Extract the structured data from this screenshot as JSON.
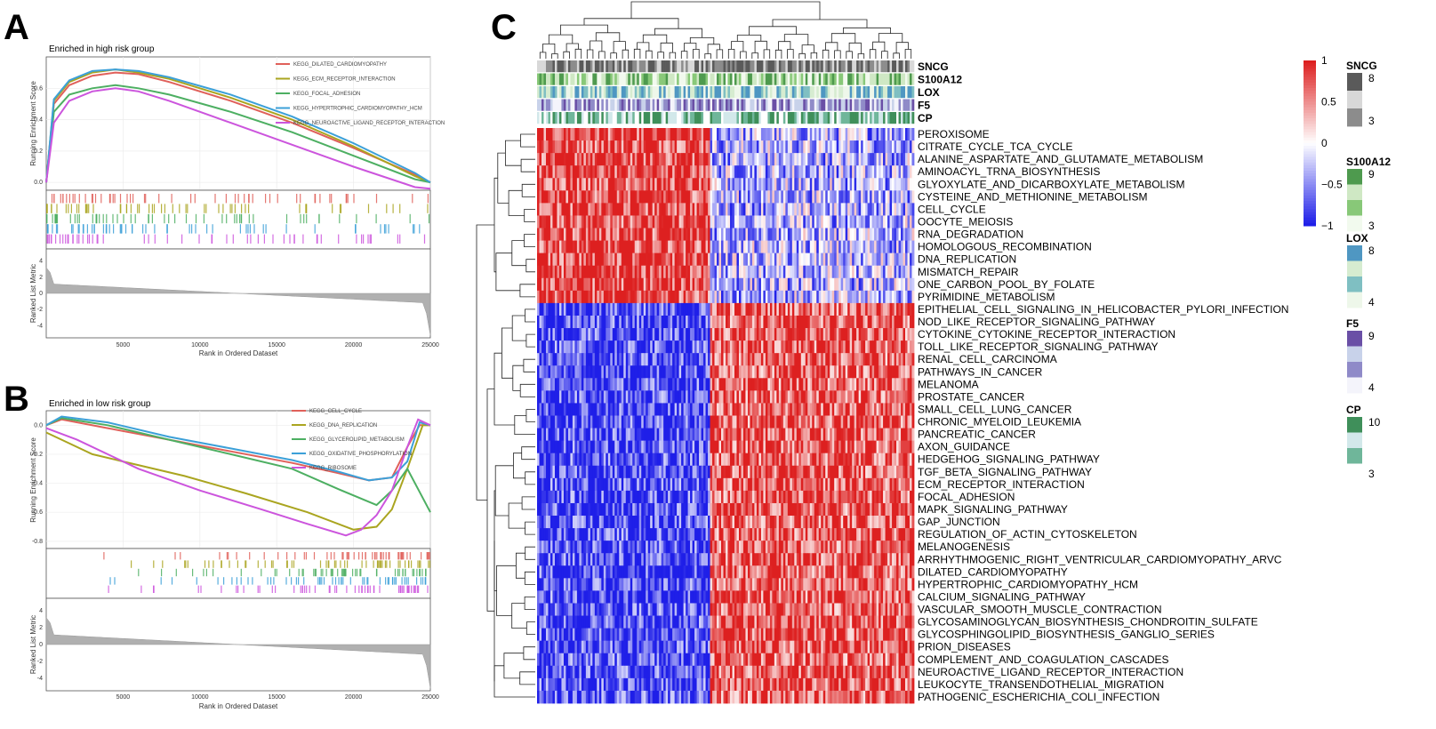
{
  "panels": {
    "a": "A",
    "b": "B",
    "c": "C"
  },
  "chart_data": [
    {
      "type": "line",
      "panel": "A",
      "title": "Enriched in high risk group",
      "xlabel": "Rank in Ordered Dataset",
      "ylabel": "Running Enrichment Score",
      "metric_label": "Ranked List Metric",
      "xlim": [
        0,
        25000
      ],
      "ylim": [
        -0.05,
        0.8
      ],
      "x_ticks": [
        "5000",
        "10000",
        "15000",
        "20000",
        "25000"
      ],
      "y_ticks": [
        "0.0",
        "0.2",
        "0.4",
        "0.6"
      ],
      "metric_ticks": [
        "4",
        "2",
        "0",
        "-2",
        "-4"
      ],
      "series": [
        {
          "name": "KEGG_DILATED_CARDIOMYOPATHY",
          "color": "#e0605a",
          "x": [
            0,
            500,
            1500,
            3000,
            4500,
            6000,
            8000,
            12000,
            16000,
            20000,
            24000,
            25000
          ],
          "y": [
            0.0,
            0.5,
            0.62,
            0.68,
            0.7,
            0.69,
            0.64,
            0.52,
            0.38,
            0.22,
            0.05,
            0.0
          ]
        },
        {
          "name": "KEGG_ECM_RECEPTOR_INTERACTION",
          "color": "#aaa520",
          "x": [
            0,
            500,
            1500,
            3000,
            4500,
            6000,
            8000,
            12000,
            16000,
            20000,
            24000,
            25000
          ],
          "y": [
            0.0,
            0.52,
            0.64,
            0.7,
            0.72,
            0.7,
            0.66,
            0.54,
            0.4,
            0.23,
            0.04,
            0.0
          ]
        },
        {
          "name": "KEGG_FOCAL_ADHESION",
          "color": "#4daf62",
          "x": [
            0,
            500,
            1500,
            3000,
            4500,
            6000,
            8000,
            12000,
            16000,
            20000,
            24000,
            25000
          ],
          "y": [
            0.0,
            0.45,
            0.56,
            0.6,
            0.62,
            0.6,
            0.56,
            0.45,
            0.32,
            0.17,
            0.02,
            0.0
          ]
        },
        {
          "name": "KEGG_HYPERTROPHIC_CARDIOMYOPATHY_HCM",
          "color": "#3ca0d8",
          "x": [
            0,
            500,
            1500,
            3000,
            4500,
            6000,
            8000,
            12000,
            16000,
            20000,
            24000,
            25000
          ],
          "y": [
            0.0,
            0.53,
            0.65,
            0.71,
            0.72,
            0.71,
            0.67,
            0.56,
            0.42,
            0.25,
            0.06,
            0.0
          ]
        },
        {
          "name": "KEGG_NEUROACTIVE_LIGAND_RECEPTOR_INTERACTION",
          "color": "#cc55dd",
          "x": [
            0,
            500,
            1500,
            3000,
            4500,
            6000,
            8000,
            12000,
            16000,
            20000,
            24000,
            25000
          ],
          "y": [
            0.0,
            0.38,
            0.52,
            0.58,
            0.6,
            0.58,
            0.52,
            0.38,
            0.24,
            0.1,
            -0.03,
            -0.04
          ]
        }
      ]
    },
    {
      "type": "line",
      "panel": "B",
      "title": "Enriched in low risk group",
      "xlabel": "Rank in Ordered Dataset",
      "ylabel": "Running Enrichment Score",
      "metric_label": "Ranked List Metric",
      "xlim": [
        0,
        25000
      ],
      "ylim": [
        -0.85,
        0.1
      ],
      "x_ticks": [
        "5000",
        "10000",
        "15000",
        "20000",
        "25000"
      ],
      "y_ticks": [
        "0.0",
        "-0.2",
        "-0.4",
        "-0.6",
        "-0.8"
      ],
      "metric_ticks": [
        "4",
        "2",
        "0",
        "-2",
        "-4"
      ],
      "series": [
        {
          "name": "KEGG_CELL_CYCLE",
          "color": "#e0605a",
          "x": [
            0,
            1000,
            4000,
            8000,
            12000,
            16000,
            19000,
            21000,
            22500,
            23500,
            24300,
            25000
          ],
          "y": [
            0.0,
            0.04,
            -0.02,
            -0.1,
            -0.18,
            -0.26,
            -0.33,
            -0.38,
            -0.36,
            -0.15,
            0.0,
            0.0
          ]
        },
        {
          "name": "KEGG_DNA_REPLICATION",
          "color": "#aaa520",
          "x": [
            0,
            1000,
            3000,
            5000,
            9000,
            13000,
            17000,
            20000,
            21500,
            22500,
            23500,
            24500,
            25000
          ],
          "y": [
            -0.05,
            -0.1,
            -0.2,
            -0.25,
            -0.35,
            -0.47,
            -0.6,
            -0.72,
            -0.7,
            -0.58,
            -0.3,
            0.0,
            0.0
          ]
        },
        {
          "name": "KEGG_GLYCEROLIPID_METABOLISM",
          "color": "#4daf62",
          "x": [
            0,
            1000,
            4000,
            8000,
            12000,
            16000,
            19000,
            21500,
            22500,
            23500,
            25000
          ],
          "y": [
            0.0,
            0.05,
            0.0,
            -0.1,
            -0.2,
            -0.3,
            -0.44,
            -0.55,
            -0.45,
            -0.3,
            -0.6
          ]
        },
        {
          "name": "KEGG_OXIDATIVE_PHOSPHORYLATION",
          "color": "#3ca0d8",
          "x": [
            0,
            1000,
            4000,
            8000,
            12000,
            16000,
            19000,
            21000,
            22500,
            23500,
            24300,
            25000
          ],
          "y": [
            0.0,
            0.06,
            0.02,
            -0.08,
            -0.16,
            -0.24,
            -0.32,
            -0.38,
            -0.36,
            -0.25,
            0.02,
            0.0
          ]
        },
        {
          "name": "KEGG_RIBOSOME",
          "color": "#cc55dd",
          "x": [
            0,
            2000,
            6000,
            10000,
            14000,
            17000,
            19500,
            20500,
            21500,
            22500,
            23500,
            24200,
            25000
          ],
          "y": [
            -0.02,
            -0.1,
            -0.3,
            -0.45,
            -0.58,
            -0.68,
            -0.76,
            -0.72,
            -0.62,
            -0.45,
            -0.15,
            0.04,
            0.0
          ]
        }
      ]
    },
    {
      "type": "heatmap",
      "panel": "C",
      "colorscale": {
        "low": "#1f1fe8",
        "mid": "#ffffff",
        "high": "#dd2020",
        "ticks": [
          "1",
          "0.5",
          "0",
          "−0.5",
          "−1"
        ]
      },
      "annotation_tracks": [
        "SNCG",
        "S100A12",
        "LOX",
        "F5",
        "CP"
      ],
      "rows": [
        "PEROXISOME",
        "CITRATE_CYCLE_TCA_CYCLE",
        "ALANINE_ASPARTATE_AND_GLUTAMATE_METABOLISM",
        "AMINOACYL_TRNA_BIOSYNTHESIS",
        "GLYOXYLATE_AND_DICARBOXYLATE_METABOLISM",
        "CYSTEINE_AND_METHIONINE_METABOLISM",
        "CELL_CYCLE",
        "OOCYTE_MEIOSIS",
        "RNA_DEGRADATION",
        "HOMOLOGOUS_RECOMBINATION",
        "DNA_REPLICATION",
        "MISMATCH_REPAIR",
        "ONE_CARBON_POOL_BY_FOLATE",
        "PYRIMIDINE_METABOLISM",
        "EPITHELIAL_CELL_SIGNALING_IN_HELICOBACTER_PYLORI_INFECTION",
        "NOD_LIKE_RECEPTOR_SIGNALING_PATHWAY",
        "CYTOKINE_CYTOKINE_RECEPTOR_INTERACTION",
        "TOLL_LIKE_RECEPTOR_SIGNALING_PATHWAY",
        "RENAL_CELL_CARCINOMA",
        "PATHWAYS_IN_CANCER",
        "MELANOMA",
        "PROSTATE_CANCER",
        "SMALL_CELL_LUNG_CANCER",
        "CHRONIC_MYELOID_LEUKEMIA",
        "PANCREATIC_CANCER",
        "AXON_GUIDANCE",
        "HEDGEHOG_SIGNALING_PATHWAY",
        "TGF_BETA_SIGNALING_PATHWAY",
        "ECM_RECEPTOR_INTERACTION",
        "FOCAL_ADHESION",
        "MAPK_SIGNALING_PATHWAY",
        "GAP_JUNCTION",
        "REGULATION_OF_ACTIN_CYTOSKELETON",
        "MELANOGENESIS",
        "ARRHYTHMOGENIC_RIGHT_VENTRICULAR_CARDIOMYOPATHY_ARVC",
        "DILATED_CARDIOMYOPATHY",
        "HYPERTROPHIC_CARDIOMYOPATHY_HCM",
        "CALCIUM_SIGNALING_PATHWAY",
        "VASCULAR_SMOOTH_MUSCLE_CONTRACTION",
        "GLYCOSAMINOGLYCAN_BIOSYNTHESIS_CHONDROITIN_SULFATE",
        "GLYCOSPHINGOLIPID_BIOSYNTHESIS_GANGLIO_SERIES",
        "PRION_DISEASES",
        "COMPLEMENT_AND_COAGULATION_CASCADES",
        "NEUROACTIVE_LIGAND_RECEPTOR_INTERACTION",
        "LEUKOCYTE_TRANSENDOTHELIAL_MIGRATION",
        "PATHOGENIC_ESCHERICHIA_COLI_INFECTION"
      ],
      "row_group_sizes": [
        14,
        11,
        21
      ],
      "column_groups": [
        {
          "name": "left",
          "fraction": 0.46,
          "pattern": [
            1,
            -1,
            -1
          ]
        },
        {
          "name": "right",
          "fraction": 0.54,
          "pattern": [
            -0.4,
            0.9,
            0.9
          ]
        }
      ],
      "legends": [
        {
          "title": "SNCG",
          "high": "8",
          "low": "3",
          "colors": [
            "#5a5a5a",
            "#d8d8d8",
            "#8c8c8c"
          ]
        },
        {
          "title": "S100A12",
          "high": "9",
          "low": "3",
          "colors": [
            "#4e9a4e",
            "#cfe8c4",
            "#88c878",
            "#f2faee"
          ]
        },
        {
          "title": "LOX",
          "high": "8",
          "low": "4",
          "colors": [
            "#4f97c2",
            "#d6ecd0",
            "#7fbfc2",
            "#eef7ea"
          ]
        },
        {
          "title": "F5",
          "high": "9",
          "low": "4",
          "colors": [
            "#6a4fa6",
            "#c8d2ea",
            "#8f8ac8",
            "#f4f4fb"
          ]
        },
        {
          "title": "CP",
          "high": "10",
          "low": "3",
          "colors": [
            "#3f8f5a",
            "#d2e8ea",
            "#6fb69a",
            "#ffffff"
          ]
        }
      ]
    }
  ]
}
